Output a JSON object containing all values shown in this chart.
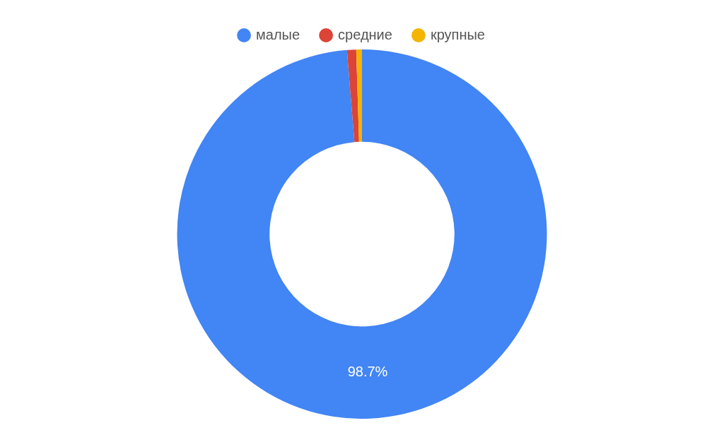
{
  "chart_data": {
    "type": "donut",
    "categories": [
      "малые",
      "средние",
      "крупные"
    ],
    "values": [
      98.7,
      0.8,
      0.5
    ],
    "colors": [
      "#4285f4",
      "#db4437",
      "#f4b400"
    ],
    "value_labels": [
      "98.7%",
      null,
      null
    ],
    "legend": "top"
  }
}
